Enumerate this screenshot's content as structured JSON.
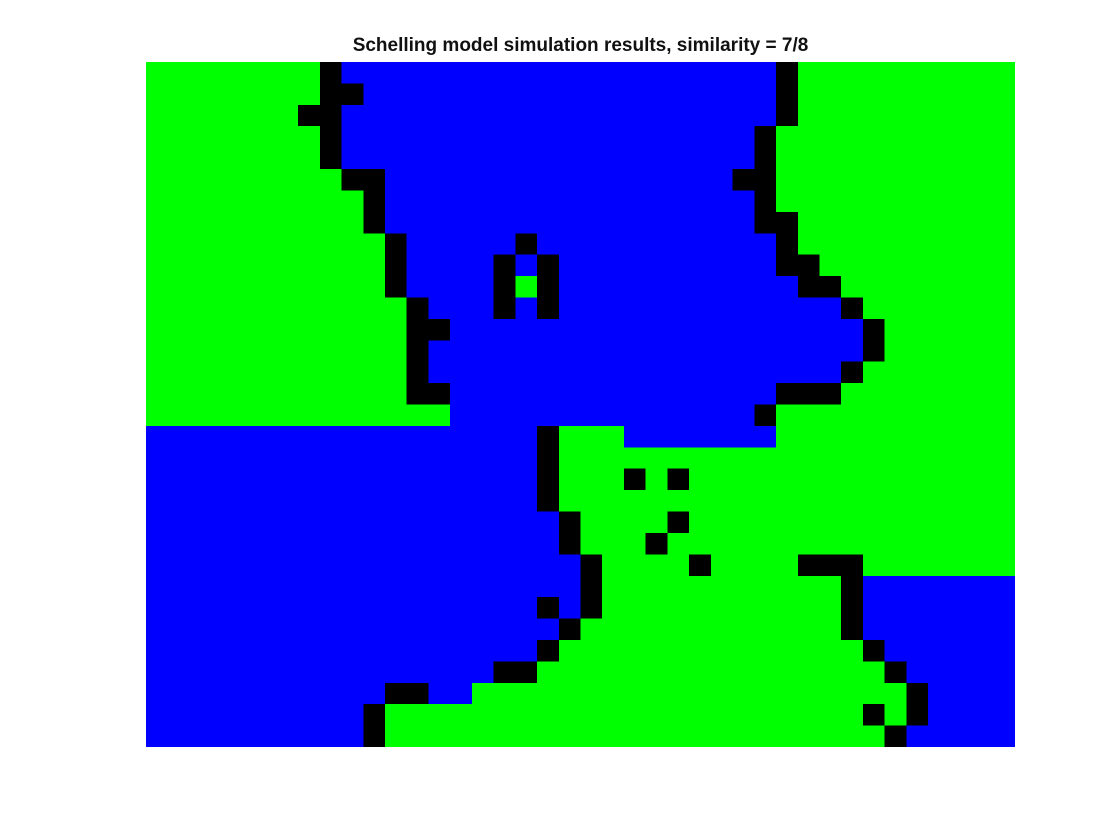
{
  "chart_data": {
    "type": "heatmap",
    "title": "Schelling model simulation results, similarity = 7/8",
    "xlabel": "",
    "ylabel": "",
    "rows": 32,
    "cols": 40,
    "legend": {
      "G": "#00ff00",
      "B": "#0000ff",
      "K": "#000000"
    },
    "grid": [
      "GGGGGGGGKBBBBBBBBBBBBBBBBBBBBKGGGGGGGGGG",
      "GGGGGGGGKKBBBBBBBBBBBBBBBBBBBKGGGGGGGGGG",
      "GGGGGGGKKBBBBBBBBBBBBBBBBBBBBKGGGGGGGGGG",
      "GGGGGGGGKBBBBBBBBBBBBBBBBBBBKGGGGGGGGGGG",
      "GGGGGGGGKBBBBBBBBBBBBBBBBBBBKGGGGGGGGGGG",
      "GGGGGGGGGKKBBBBBBBBBBBBBBBBKKGGGGGGGGGGG",
      "GGGGGGGGGGKBBBBBBBBBBBBBBBBBKGGGGGGGGGGG",
      "GGGGGGGGGGKBBBBBBBBBBBBBBBBBKKGGGGGGGGGG",
      "GGGGGGGGGGGKBBBBBKBBBBBBBBBBBKGGGGGGGGGG",
      "GGGGGGGGGGGKBBBBKBKBBBBBBBBBBKKGGGGGGGGG",
      "GGGGGGGGGGGKBBBBKGKBBBBBBBBBBBKKGGGGGGGG",
      "GGGGGGGGGGGGKBBBKBKBBBBBBBBBBBBBKGGGGGGG",
      "GGGGGGGGGGGGKKBBBBBBBBBBBBBBBBBBBKGGGGGG",
      "GGGGGGGGGGGGKBBBBBBBBBBBBBBBBBBBBKGGGGGG",
      "GGGGGGGGGGGGKBBBBBBBBBBBBBBBBBBBKGGGGGGG",
      "GGGGGGGGGGGGKKBBBBBBBBBBBBBBBKKKGGGGGGGG",
      "GGGGGGGGGGGGGGBBBBBBBBBBBBBBKGGGGGGGGGGG",
      "BBBBBBBBBBBBBBBBBBKGGGBBBBBBBGGGGGGGGGGG",
      "BBBBBBBBBBBBBBBBBBKGGGGGGGGGGGGGGGGGGGGG",
      "BBBBBBBBBBBBBBBBBBKGGGKGKGGGGGGGGGGGGGGG",
      "BBBBBBBBBBBBBBBBBBKGGGGGGGGGGGGGGGGGGGGG",
      "BBBBBBBBBBBBBBBBBBBKGGGGKGGGGGGGGGGGGGGG",
      "BBBBBBBBBBBBBBBBBBBKGGGKGGGGGGGGGGGGGGGG",
      "BBBBBBBBBBBBBBBBBBBBKGGGGKGGGGKKKGGGGGGG",
      "BBBBBBBBBBBBBBBBBBBBKGGGGGGGGGGGKBBBBBBB",
      "BBBBBBBBBBBBBBBBBBKBKGGGGGGGGGGGKBBBBBBB",
      "BBBBBBBBBBBBBBBBBBBKGGGGGGGGGGGGKBBBBBBB",
      "BBBBBBBBBBBBBBBBBBKGGGGGGGGGGGGGGKBBBBBB",
      "BBBBBBBBBBBBBBBBKKGGGGGGGGGGGGGGGGKBBBBB",
      "BBBBBBBBBBBKKBBGGGGGGGGGGGGGGGGGGGGKBBBB",
      "BBBBBBBBBBKGGGGGGGGGGGGGGGGGGGGGGKGKBBBB",
      "BBBBBBBBBBKGGGGGGGGGGGGGGGGGGGGGGGKBBBBB"
    ]
  }
}
